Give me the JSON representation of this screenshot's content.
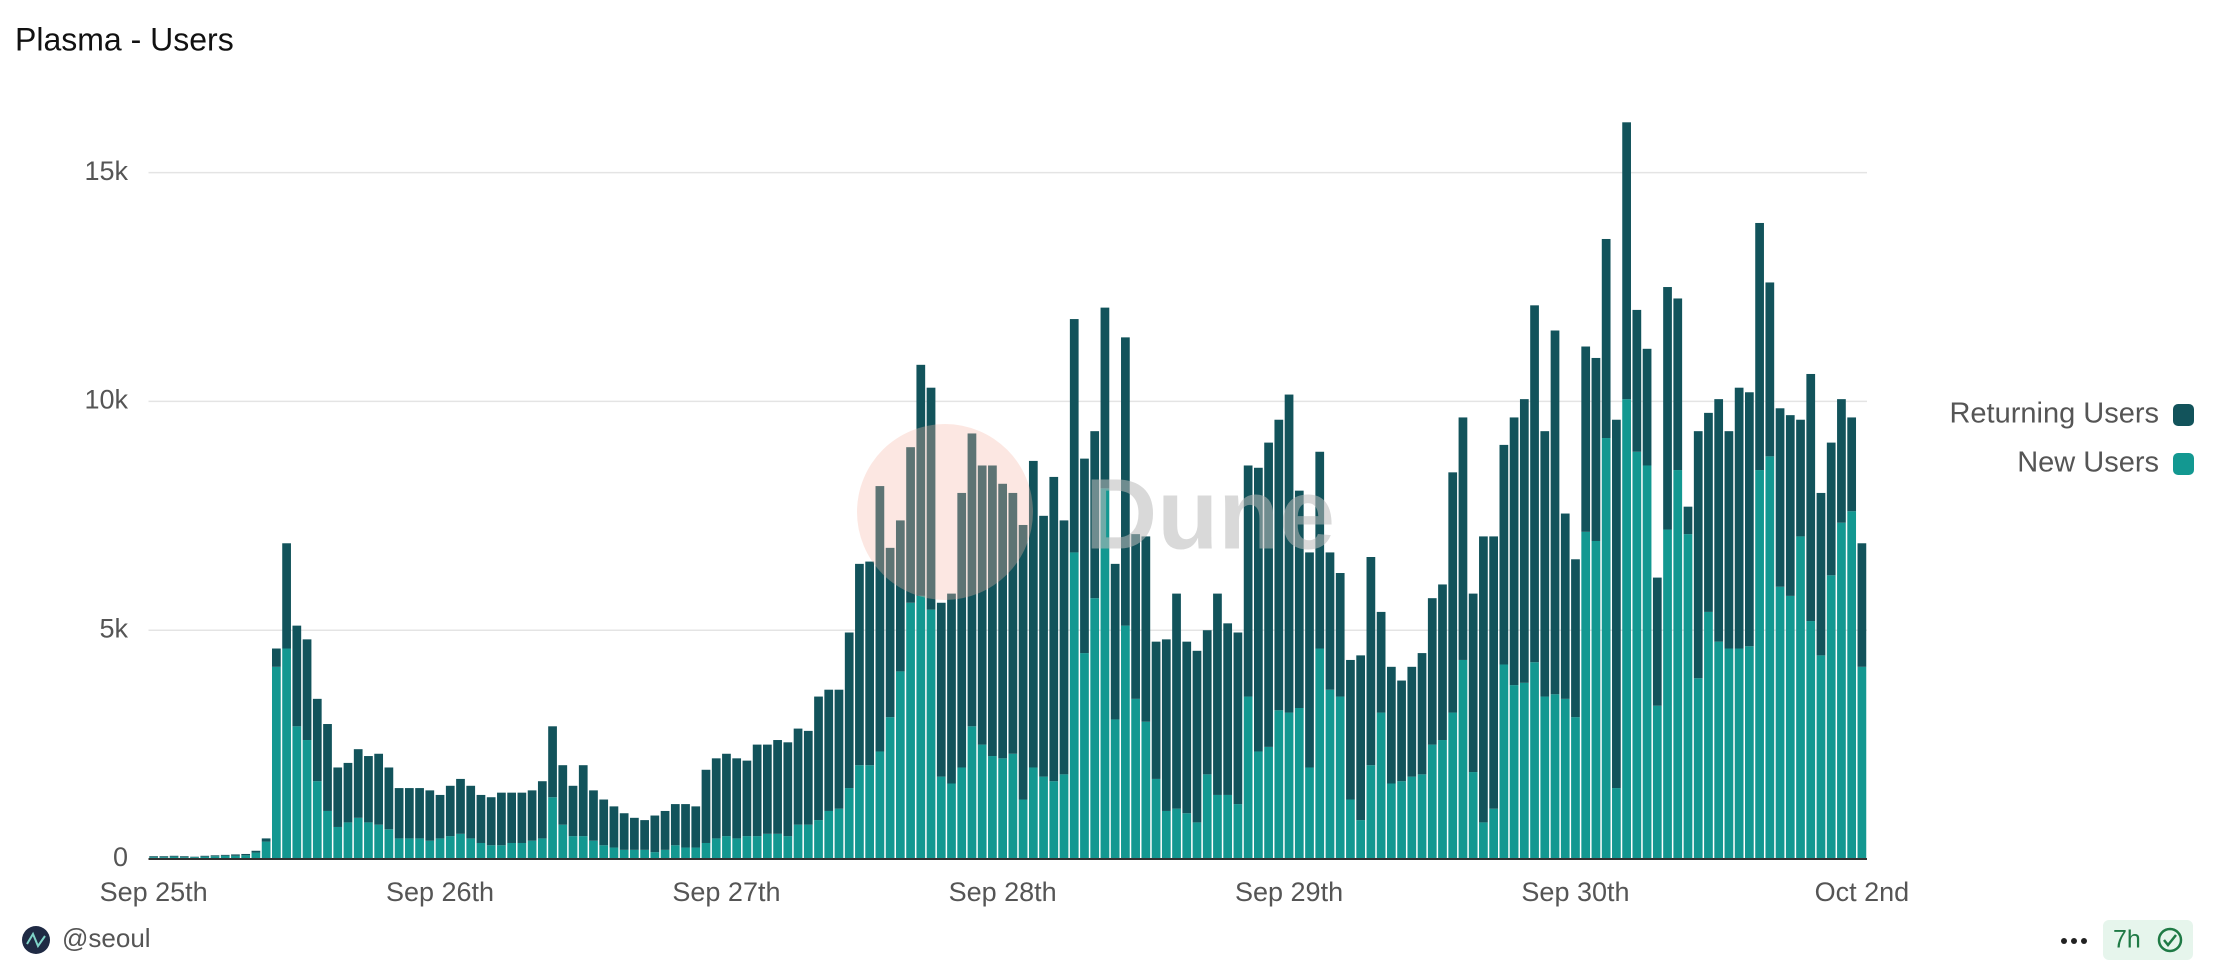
{
  "chart_data": {
    "type": "stacked_bar",
    "title": "Plasma - Users",
    "watermark": "Dune",
    "categories": [
      "Sep 25th",
      null,
      null,
      null,
      null,
      null,
      null,
      null,
      null,
      null,
      null,
      null,
      null,
      null,
      null,
      null,
      null,
      null,
      null,
      null,
      null,
      null,
      null,
      null,
      null,
      null,
      null,
      null,
      "Sep 26th",
      null,
      null,
      null,
      null,
      null,
      null,
      null,
      null,
      null,
      null,
      null,
      null,
      null,
      null,
      null,
      null,
      null,
      null,
      null,
      null,
      null,
      null,
      null,
      null,
      null,
      null,
      null,
      "Sep 27th",
      null,
      null,
      null,
      null,
      null,
      null,
      null,
      null,
      null,
      null,
      null,
      null,
      null,
      null,
      null,
      null,
      null,
      null,
      null,
      null,
      null,
      null,
      null,
      null,
      null,
      null,
      "Sep 28th",
      null,
      null,
      null,
      null,
      null,
      null,
      null,
      null,
      null,
      null,
      null,
      null,
      null,
      null,
      null,
      null,
      null,
      null,
      null,
      null,
      null,
      null,
      null,
      null,
      null,
      null,
      null,
      "Sep 29th",
      null,
      null,
      null,
      null,
      null,
      null,
      null,
      null,
      null,
      null,
      null,
      null,
      null,
      null,
      null,
      null,
      null,
      null,
      null,
      null,
      null,
      null,
      null,
      null,
      null,
      null,
      null,
      "Sep 30th",
      null,
      null,
      null,
      null,
      null,
      null,
      null,
      null,
      null,
      null,
      null,
      null,
      null,
      null,
      null,
      null,
      null,
      null,
      null,
      null,
      null,
      null,
      null,
      null,
      null,
      null,
      null,
      "Oct 2nd"
    ],
    "series": [
      {
        "name": "New Users",
        "color": "#139891",
        "values": [
          40,
          40,
          50,
          40,
          40,
          50,
          60,
          70,
          70,
          80,
          140,
          380,
          4200,
          4600,
          2900,
          2600,
          1700,
          1050,
          700,
          800,
          900,
          800,
          750,
          650,
          450,
          450,
          450,
          400,
          450,
          500,
          550,
          450,
          350,
          300,
          300,
          350,
          350,
          400,
          450,
          1350,
          750,
          500,
          500,
          400,
          300,
          250,
          200,
          200,
          200,
          150,
          200,
          300,
          250,
          250,
          350,
          450,
          500,
          450,
          500,
          500,
          550,
          550,
          500,
          750,
          750,
          850,
          1050,
          1100,
          1550,
          2050,
          2050,
          2350,
          3100,
          4100,
          5600,
          5750,
          5450,
          1800,
          1650,
          2000,
          2900,
          2500,
          2250,
          2200,
          2300,
          1300,
          2000,
          1800,
          1700,
          1850,
          6700,
          4500,
          5700,
          8100,
          3050,
          5100,
          3500,
          3000,
          1750,
          1050,
          1100,
          1000,
          800,
          1850,
          1400,
          1400,
          1200,
          3550,
          2350,
          2450,
          3250,
          3200,
          3300,
          2000,
          4600,
          3700,
          3550,
          1300,
          850,
          2050,
          3200,
          1650,
          1700,
          1800,
          1850,
          2500,
          2600,
          3200,
          4350,
          1900,
          800,
          1100,
          4250,
          3800,
          3850,
          4300,
          3550,
          3600,
          3500,
          3100,
          7150,
          6950,
          9200,
          1550,
          10050,
          8900,
          8600,
          3350,
          7200,
          8500,
          7100,
          3950,
          5400,
          4750,
          4600,
          4600,
          4650,
          8500,
          8800,
          5950,
          5750,
          7050,
          5200,
          4450,
          6200,
          7350,
          7600,
          4200
        ]
      },
      {
        "name": "Returning Users",
        "color": "#12535b",
        "values": [
          20,
          20,
          20,
          20,
          10,
          20,
          20,
          20,
          30,
          30,
          40,
          70,
          400,
          2300,
          2200,
          2200,
          1800,
          1900,
          1300,
          1300,
          1500,
          1450,
          1550,
          1350,
          1100,
          1100,
          1100,
          1100,
          950,
          1100,
          1200,
          1150,
          1050,
          1050,
          1150,
          1100,
          1100,
          1100,
          1250,
          1550,
          1300,
          1100,
          1550,
          1100,
          1000,
          900,
          800,
          700,
          650,
          800,
          850,
          900,
          950,
          900,
          1600,
          1750,
          1800,
          1750,
          1650,
          2000,
          1950,
          2050,
          2050,
          2100,
          2050,
          2700,
          2650,
          2600,
          3400,
          4400,
          4450,
          5800,
          3700,
          3300,
          3400,
          5050,
          4850,
          3800,
          4150,
          6000,
          6400,
          6100,
          6350,
          6000,
          5700,
          6000,
          6700,
          5700,
          6650,
          5550,
          5100,
          4250,
          3650,
          3950,
          3400,
          6300,
          3600,
          4050,
          3000,
          3750,
          4700,
          3750,
          3750,
          3150,
          4400,
          3750,
          3750,
          5050,
          6200,
          6650,
          6350,
          6950,
          4750,
          4700,
          4300,
          3000,
          2700,
          3050,
          3600,
          4550,
          2200,
          2550,
          2200,
          2400,
          2650,
          3200,
          3400,
          5250,
          5300,
          3900,
          6250,
          5950,
          4800,
          5850,
          6200,
          7800,
          5800,
          7950,
          4050,
          3450,
          4050,
          4000,
          4350,
          8050,
          6050,
          3100,
          2550,
          2800,
          5300,
          3750,
          600,
          5400,
          4350,
          5300,
          4750,
          5700,
          5550,
          5400,
          3800,
          3900,
          3950,
          2550,
          5400,
          3550,
          2900,
          2700,
          2050,
          2700
        ]
      }
    ],
    "ylim": [
      0,
      16500
    ],
    "yticks": [
      0,
      {
        "value": 5000,
        "label": "5k"
      },
      {
        "value": 10000,
        "label": "10k"
      },
      {
        "value": 15000,
        "label": "15k"
      }
    ],
    "grid": true,
    "legend": "right"
  },
  "footer": {
    "user": "@seoul",
    "age": "7h"
  }
}
